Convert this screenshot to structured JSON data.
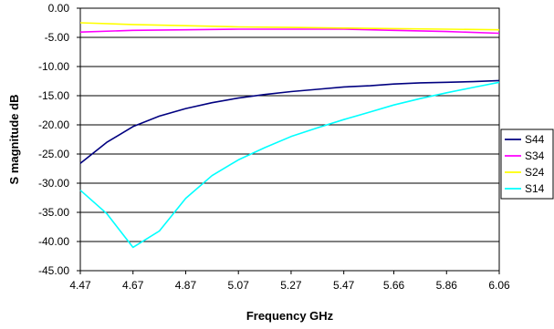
{
  "chart_data": {
    "type": "line",
    "title": "",
    "xlabel": "Frequency GHz",
    "ylabel": "S magnitude dB",
    "xlim": [
      4.47,
      6.06
    ],
    "ylim": [
      -45,
      0
    ],
    "ytick_step": 5,
    "y_tick_labels": [
      "0.00",
      "-5.00",
      "-10.00",
      "-15.00",
      "-20.00",
      "-25.00",
      "-30.00",
      "-35.00",
      "-40.00",
      "-45.00"
    ],
    "x_tick_labels": [
      "4.47",
      "4.67",
      "4.87",
      "5.07",
      "5.27",
      "5.47",
      "5.66",
      "5.86",
      "6.06"
    ],
    "x_tick_values": [
      4.47,
      4.67,
      4.87,
      5.07,
      5.27,
      5.47,
      5.66,
      5.86,
      6.06
    ],
    "grid": "horizontal",
    "legend_position": "right",
    "series": [
      {
        "name": "S44",
        "color": "#000080",
        "points": [
          [
            4.47,
            -26.6
          ],
          [
            4.57,
            -23.0
          ],
          [
            4.67,
            -20.3
          ],
          [
            4.77,
            -18.5
          ],
          [
            4.87,
            -17.2
          ],
          [
            4.97,
            -16.2
          ],
          [
            5.07,
            -15.4
          ],
          [
            5.17,
            -14.8
          ],
          [
            5.27,
            -14.3
          ],
          [
            5.37,
            -13.9
          ],
          [
            5.47,
            -13.5
          ],
          [
            5.57,
            -13.3
          ],
          [
            5.66,
            -13.0
          ],
          [
            5.76,
            -12.8
          ],
          [
            5.86,
            -12.7
          ],
          [
            5.96,
            -12.6
          ],
          [
            6.06,
            -12.4
          ]
        ]
      },
      {
        "name": "S34",
        "color": "#ff00ff",
        "points": [
          [
            4.47,
            -4.1
          ],
          [
            4.67,
            -3.8
          ],
          [
            4.87,
            -3.7
          ],
          [
            5.07,
            -3.6
          ],
          [
            5.27,
            -3.6
          ],
          [
            5.47,
            -3.6
          ],
          [
            5.66,
            -3.8
          ],
          [
            5.86,
            -4.0
          ],
          [
            6.06,
            -4.3
          ]
        ]
      },
      {
        "name": "S24",
        "color": "#ffff00",
        "points": [
          [
            4.47,
            -2.5
          ],
          [
            4.67,
            -2.8
          ],
          [
            4.87,
            -3.0
          ],
          [
            5.07,
            -3.2
          ],
          [
            5.27,
            -3.3
          ],
          [
            5.47,
            -3.4
          ],
          [
            5.66,
            -3.5
          ],
          [
            5.86,
            -3.6
          ],
          [
            6.06,
            -3.7
          ]
        ]
      },
      {
        "name": "S14",
        "color": "#00ffff",
        "points": [
          [
            4.47,
            -31.2
          ],
          [
            4.57,
            -35.2
          ],
          [
            4.67,
            -41.0
          ],
          [
            4.77,
            -38.2
          ],
          [
            4.87,
            -32.6
          ],
          [
            4.97,
            -28.7
          ],
          [
            5.07,
            -26.0
          ],
          [
            5.17,
            -23.9
          ],
          [
            5.27,
            -22.0
          ],
          [
            5.37,
            -20.5
          ],
          [
            5.47,
            -19.1
          ],
          [
            5.57,
            -17.8
          ],
          [
            5.66,
            -16.6
          ],
          [
            5.76,
            -15.5
          ],
          [
            5.86,
            -14.5
          ],
          [
            5.96,
            -13.6
          ],
          [
            6.06,
            -12.7
          ]
        ]
      }
    ]
  }
}
